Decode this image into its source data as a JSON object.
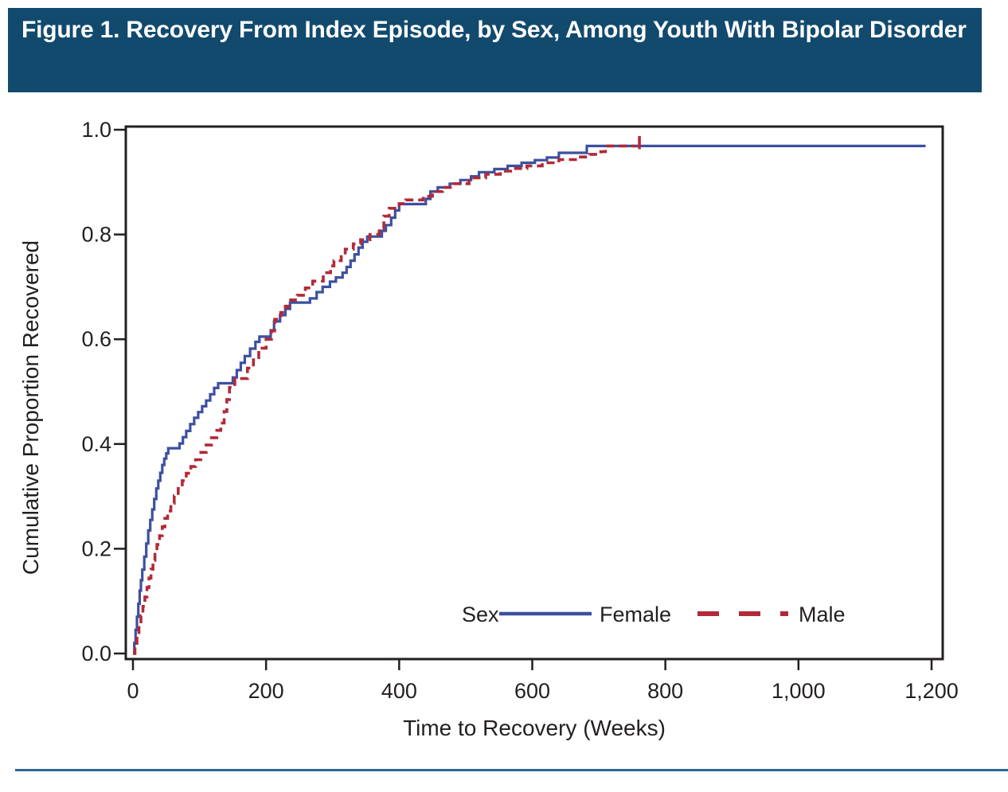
{
  "figure_header": {
    "title": "Figure 1. Recovery From Index Episode, by Sex, Among Youth With Bipolar Disorder"
  },
  "colors": {
    "header_bg": "#124a6e",
    "header_text": "#ffffff",
    "axis": "#231f20",
    "female_line": "#3c50a0",
    "male_line": "#b22a38",
    "bottom_rule": "#2f6695"
  },
  "chart_data": {
    "type": "line",
    "subtype": "kaplan_meier_step",
    "title": "",
    "xlabel": "Time to Recovery (Weeks)",
    "ylabel": "Cumulative Proportion Recovered",
    "xlim": [
      0,
      1200
    ],
    "ylim": [
      0.0,
      1.0
    ],
    "grid": false,
    "xticks": {
      "values": [
        0,
        200,
        400,
        600,
        800,
        1000,
        1200
      ],
      "labels": [
        "0",
        "200",
        "400",
        "600",
        "800",
        "1,000",
        "1,200"
      ]
    },
    "yticks": {
      "values": [
        0.0,
        0.2,
        0.4,
        0.6,
        0.8,
        1.0
      ],
      "labels": [
        "0.0",
        "0.2",
        "0.4",
        "0.6",
        "0.8",
        "1.0"
      ]
    },
    "legend": {
      "title": "Sex",
      "position": "inside-bottom-center",
      "entries": [
        {
          "label": "Female",
          "style": "solid",
          "color": "#3c50a0"
        },
        {
          "label": "Male",
          "style": "dashed",
          "color": "#b22a38"
        }
      ]
    },
    "series": [
      {
        "name": "Female",
        "style": "solid",
        "color": "#3c50a0",
        "points": [
          [
            0,
            0
          ],
          [
            2,
            0.02
          ],
          [
            4,
            0.045
          ],
          [
            6,
            0.07
          ],
          [
            8,
            0.095
          ],
          [
            10,
            0.12
          ],
          [
            12,
            0.14
          ],
          [
            14,
            0.16
          ],
          [
            17,
            0.185
          ],
          [
            20,
            0.21
          ],
          [
            23,
            0.235
          ],
          [
            26,
            0.255
          ],
          [
            29,
            0.275
          ],
          [
            32,
            0.295
          ],
          [
            35,
            0.315
          ],
          [
            38,
            0.33
          ],
          [
            41,
            0.345
          ],
          [
            44,
            0.36
          ],
          [
            47,
            0.372
          ],
          [
            50,
            0.382
          ],
          [
            53,
            0.392
          ],
          [
            70,
            0.401
          ],
          [
            75,
            0.413
          ],
          [
            80,
            0.425
          ],
          [
            86,
            0.438
          ],
          [
            92,
            0.45
          ],
          [
            98,
            0.461
          ],
          [
            104,
            0.472
          ],
          [
            110,
            0.483
          ],
          [
            116,
            0.495
          ],
          [
            122,
            0.507
          ],
          [
            128,
            0.516
          ],
          [
            150,
            0.527
          ],
          [
            156,
            0.541
          ],
          [
            162,
            0.555
          ],
          [
            168,
            0.568
          ],
          [
            176,
            0.582
          ],
          [
            184,
            0.595
          ],
          [
            190,
            0.605
          ],
          [
            207,
            0.617
          ],
          [
            212,
            0.634
          ],
          [
            221,
            0.646
          ],
          [
            229,
            0.658
          ],
          [
            236,
            0.67
          ],
          [
            266,
            0.678
          ],
          [
            276,
            0.69
          ],
          [
            285,
            0.7
          ],
          [
            296,
            0.71
          ],
          [
            305,
            0.718
          ],
          [
            315,
            0.727
          ],
          [
            321,
            0.738
          ],
          [
            327,
            0.75
          ],
          [
            333,
            0.762
          ],
          [
            339,
            0.775
          ],
          [
            345,
            0.786
          ],
          [
            352,
            0.796
          ],
          [
            374,
            0.807
          ],
          [
            380,
            0.818
          ],
          [
            388,
            0.832
          ],
          [
            394,
            0.846
          ],
          [
            400,
            0.858
          ],
          [
            440,
            0.868
          ],
          [
            447,
            0.882
          ],
          [
            458,
            0.89
          ],
          [
            476,
            0.897
          ],
          [
            492,
            0.904
          ],
          [
            508,
            0.911
          ],
          [
            520,
            0.919
          ],
          [
            543,
            0.925
          ],
          [
            563,
            0.931
          ],
          [
            584,
            0.937
          ],
          [
            604,
            0.942
          ],
          [
            622,
            0.947
          ],
          [
            640,
            0.956
          ],
          [
            682,
            0.969
          ],
          [
            1191,
            0.969
          ]
        ]
      },
      {
        "name": "Male",
        "style": "dashed",
        "color": "#b22a38",
        "points": [
          [
            0,
            0
          ],
          [
            3,
            0.015
          ],
          [
            6,
            0.035
          ],
          [
            9,
            0.055
          ],
          [
            12,
            0.072
          ],
          [
            15,
            0.09
          ],
          [
            18,
            0.108
          ],
          [
            21,
            0.126
          ],
          [
            24,
            0.144
          ],
          [
            27,
            0.161
          ],
          [
            30,
            0.178
          ],
          [
            33,
            0.193
          ],
          [
            36,
            0.208
          ],
          [
            40,
            0.225
          ],
          [
            44,
            0.242
          ],
          [
            48,
            0.258
          ],
          [
            52,
            0.272
          ],
          [
            57,
            0.287
          ],
          [
            62,
            0.301
          ],
          [
            68,
            0.315
          ],
          [
            74,
            0.33
          ],
          [
            80,
            0.344
          ],
          [
            87,
            0.357
          ],
          [
            94,
            0.37
          ],
          [
            102,
            0.384
          ],
          [
            110,
            0.398
          ],
          [
            118,
            0.412
          ],
          [
            126,
            0.426
          ],
          [
            132,
            0.44
          ],
          [
            137,
            0.462
          ],
          [
            141,
            0.485
          ],
          [
            145,
            0.508
          ],
          [
            153,
            0.525
          ],
          [
            172,
            0.545
          ],
          [
            181,
            0.565
          ],
          [
            189,
            0.583
          ],
          [
            200,
            0.6
          ],
          [
            208,
            0.616
          ],
          [
            213,
            0.638
          ],
          [
            222,
            0.651
          ],
          [
            229,
            0.663
          ],
          [
            237,
            0.675
          ],
          [
            247,
            0.684
          ],
          [
            259,
            0.698
          ],
          [
            270,
            0.711
          ],
          [
            286,
            0.727
          ],
          [
            297,
            0.74
          ],
          [
            302,
            0.75
          ],
          [
            313,
            0.761
          ],
          [
            319,
            0.772
          ],
          [
            331,
            0.782
          ],
          [
            342,
            0.79
          ],
          [
            356,
            0.8
          ],
          [
            370,
            0.812
          ],
          [
            377,
            0.835
          ],
          [
            385,
            0.85
          ],
          [
            400,
            0.859
          ],
          [
            410,
            0.866
          ],
          [
            436,
            0.873
          ],
          [
            450,
            0.882
          ],
          [
            465,
            0.89
          ],
          [
            482,
            0.897
          ],
          [
            505,
            0.908
          ],
          [
            530,
            0.915
          ],
          [
            552,
            0.921
          ],
          [
            572,
            0.926
          ],
          [
            592,
            0.931
          ],
          [
            615,
            0.937
          ],
          [
            640,
            0.943
          ],
          [
            665,
            0.948
          ],
          [
            686,
            0.953
          ],
          [
            703,
            0.958
          ],
          [
            710,
            0.969
          ],
          [
            755,
            0.97
          ]
        ],
        "censor_tick": {
          "x": 761,
          "y_from": 0.963,
          "y_to": 0.988
        }
      }
    ]
  }
}
